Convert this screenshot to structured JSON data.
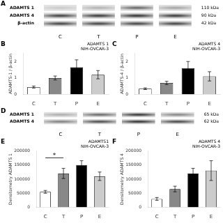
{
  "chart_data": [
    {
      "type": "blot",
      "annotations": [
        {
          "text": "A"
        }
      ],
      "categories": [
        "C",
        "T",
        "P",
        "E"
      ],
      "series": [
        {
          "name": "ADAMTS 1",
          "annotation": "110 kDa",
          "values": [
            0.88,
            0.78,
            0.45,
            0.72
          ]
        },
        {
          "name": "ADAMTS 4",
          "annotation": "90 kDa",
          "values": [
            0.28,
            0.25,
            0.22,
            0.25
          ]
        },
        {
          "name": "β-actin",
          "annotation": "42 kDa",
          "values": [
            0.3,
            0.3,
            0.3,
            0.3
          ]
        }
      ]
    },
    {
      "type": "bar",
      "title": "ADAMTS 1\nNIH-OVCAR-3",
      "y_label": "ADAMTS-1 / β-actin",
      "annotations": [
        {
          "text": "B"
        }
      ],
      "categories": [
        "C",
        "T",
        "P",
        "E"
      ],
      "values": [
        0.45,
        1.0,
        1.65,
        1.2
      ],
      "errors": [
        0.06,
        0.12,
        0.45,
        0.25
      ],
      "colors": [
        "white",
        "#888888",
        "black",
        "#cccccc"
      ],
      "ylim": [
        0,
        2.5
      ],
      "yticks": [
        0,
        1,
        2
      ],
      "grid": false
    },
    {
      "type": "bar",
      "title": "ADAMTS 4\nNIH-OVCAR-3",
      "y_label": "ADAMTS-4 / β-actin",
      "annotations": [
        {
          "text": "C"
        }
      ],
      "categories": [
        "C",
        "T",
        "P",
        "E"
      ],
      "values": [
        0.35,
        0.7,
        1.6,
        1.1
      ],
      "errors": [
        0.05,
        0.1,
        0.4,
        0.28
      ],
      "colors": [
        "white",
        "#888888",
        "black",
        "#cccccc"
      ],
      "ylim": [
        0,
        2.5
      ],
      "yticks": [
        0,
        1,
        2
      ],
      "grid": false
    },
    {
      "type": "blot",
      "annotations": [
        {
          "text": "D"
        }
      ],
      "categories": [
        "C",
        "T",
        "P",
        "E"
      ],
      "series": [
        {
          "name": "ADAMTS 1",
          "annotation": "65 kDa",
          "values": [
            0.75,
            0.45,
            0.22,
            0.58
          ]
        },
        {
          "name": "ADAMTS 4",
          "annotation": "62 kDa",
          "values": [
            0.55,
            0.32,
            0.2,
            0.3
          ]
        }
      ]
    },
    {
      "type": "bar",
      "title": "ADAMTS1\nNIH-OVCAR-3",
      "y_label": "Densitometry ADAMTS 1",
      "annotations": [
        {
          "text": "E"
        },
        {
          "text": "*",
          "x": [
            "C",
            "T"
          ],
          "y": 175000
        }
      ],
      "categories": [
        "C",
        "T",
        "P",
        "E"
      ],
      "values": [
        55000,
        120000,
        150000,
        110000
      ],
      "errors": [
        5000,
        18000,
        15000,
        15000
      ],
      "colors": [
        "white",
        "#888888",
        "black",
        "#cccccc"
      ],
      "ylim": [
        0,
        200000
      ],
      "yticks": [
        0,
        50000,
        100000,
        150000,
        200000
      ],
      "grid": false
    },
    {
      "type": "bar",
      "title": "ADAMTS 4\nNIH-OVCAR-3",
      "y_label": "Densitometry ADAMTS 4",
      "annotations": [
        {
          "text": "F"
        }
      ],
      "categories": [
        "C",
        "T",
        "P",
        "E"
      ],
      "values": [
        30000,
        65000,
        120000,
        130000
      ],
      "errors": [
        5000,
        10000,
        18000,
        35000
      ],
      "colors": [
        "white",
        "#888888",
        "black",
        "#cccccc"
      ],
      "ylim": [
        0,
        200000
      ],
      "yticks": [
        0,
        50000,
        100000,
        150000,
        200000
      ],
      "grid": false
    }
  ]
}
